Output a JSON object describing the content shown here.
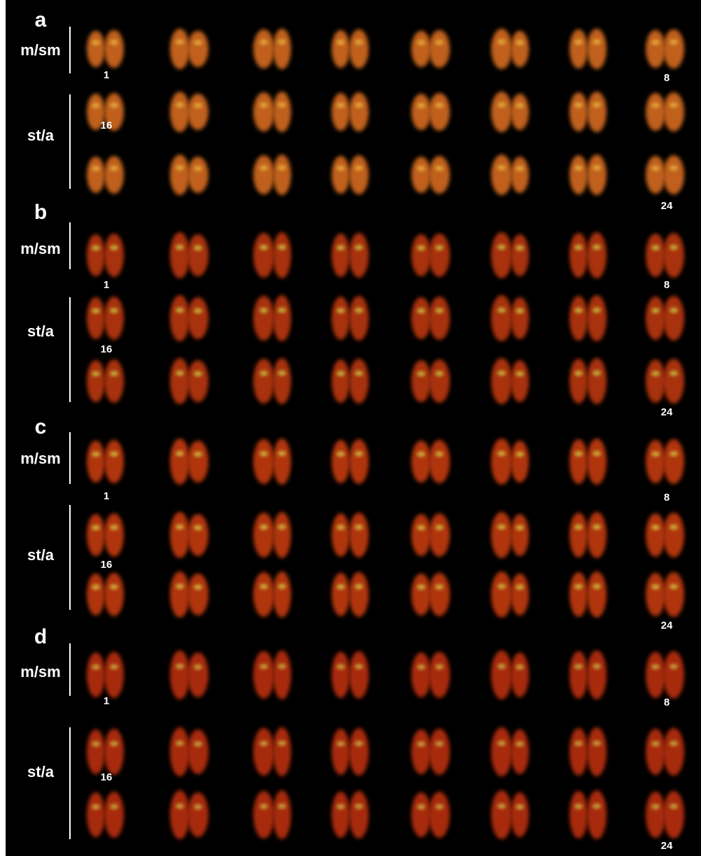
{
  "panels": [
    {
      "label": "a",
      "groups": [
        {
          "label": "m/sm",
          "numbers": [
            "1",
            "8"
          ]
        },
        {
          "label": "st/a",
          "numbers": [
            "16",
            "24"
          ]
        }
      ]
    },
    {
      "label": "b",
      "groups": [
        {
          "label": "m/sm",
          "numbers": [
            "1",
            "8"
          ]
        },
        {
          "label": "st/a",
          "numbers": [
            "16",
            "24"
          ]
        }
      ]
    },
    {
      "label": "c",
      "groups": [
        {
          "label": "m/sm",
          "numbers": [
            "1",
            "8"
          ]
        },
        {
          "label": "st/a",
          "numbers": [
            "16",
            "24"
          ]
        }
      ]
    },
    {
      "label": "d",
      "groups": [
        {
          "label": "m/sm",
          "numbers": [
            "1",
            "8"
          ]
        },
        {
          "label": "st/a",
          "numbers": [
            "16",
            "24"
          ]
        }
      ]
    }
  ]
}
